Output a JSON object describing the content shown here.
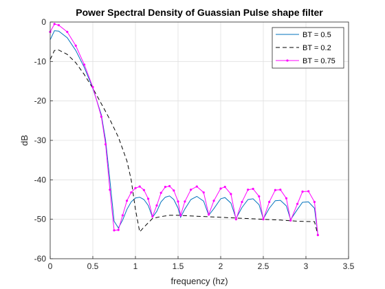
{
  "chart_data": {
    "type": "line",
    "title": "Power Spectral Density of Guassian Pulse shape filter",
    "xlabel": "frequency (hz)",
    "ylabel": "dB",
    "xlim": [
      0,
      3.5
    ],
    "ylim": [
      -60,
      0
    ],
    "xticks": [
      0,
      0.5,
      1,
      1.5,
      2,
      2.5,
      3,
      3.5
    ],
    "xtick_labels": [
      "0",
      "0.5",
      "1",
      "1.5",
      "2",
      "2.5",
      "3",
      "3.5"
    ],
    "yticks": [
      0,
      -10,
      -20,
      -30,
      -40,
      -50,
      -60
    ],
    "ytick_labels": [
      "0",
      "-10",
      "-20",
      "-30",
      "-40",
      "-50",
      "-60"
    ],
    "grid": true,
    "legend_position": "top-right",
    "series": [
      {
        "name": "BT = 0.5",
        "color": "#0072BD",
        "style": "solid",
        "marker": "none",
        "points": [
          [
            0,
            -4.5
          ],
          [
            0.05,
            -2.2
          ],
          [
            0.1,
            -2.3
          ],
          [
            0.2,
            -4.0
          ],
          [
            0.3,
            -7.2
          ],
          [
            0.4,
            -11.5
          ],
          [
            0.5,
            -16.8
          ],
          [
            0.6,
            -23.5
          ],
          [
            0.65,
            -30
          ],
          [
            0.7,
            -40
          ],
          [
            0.75,
            -50.5
          ],
          [
            0.8,
            -52.2
          ],
          [
            0.85,
            -50.2
          ],
          [
            0.9,
            -47.5
          ],
          [
            0.95,
            -45.6
          ],
          [
            1.0,
            -44.6
          ],
          [
            1.05,
            -44.4
          ],
          [
            1.1,
            -45.0
          ],
          [
            1.15,
            -46.5
          ],
          [
            1.2,
            -49.5
          ],
          [
            1.25,
            -48.0
          ],
          [
            1.3,
            -45.6
          ],
          [
            1.35,
            -44.4
          ],
          [
            1.4,
            -44.1
          ],
          [
            1.45,
            -45.0
          ],
          [
            1.5,
            -47.2
          ],
          [
            1.53,
            -49.5
          ],
          [
            1.58,
            -47.4
          ],
          [
            1.65,
            -45.0
          ],
          [
            1.72,
            -44.2
          ],
          [
            1.8,
            -45.4
          ],
          [
            1.86,
            -49.0
          ],
          [
            1.92,
            -47.3
          ],
          [
            2.0,
            -44.8
          ],
          [
            2.05,
            -44.5
          ],
          [
            2.12,
            -45.9
          ],
          [
            2.18,
            -49.8
          ],
          [
            2.25,
            -47.0
          ],
          [
            2.32,
            -45.0
          ],
          [
            2.38,
            -44.8
          ],
          [
            2.45,
            -46.3
          ],
          [
            2.5,
            -49.9
          ],
          [
            2.57,
            -47.2
          ],
          [
            2.64,
            -45.3
          ],
          [
            2.7,
            -45.2
          ],
          [
            2.77,
            -46.6
          ],
          [
            2.82,
            -50.1
          ],
          [
            2.9,
            -47.5
          ],
          [
            2.96,
            -45.7
          ],
          [
            3.03,
            -45.6
          ],
          [
            3.1,
            -47.2
          ],
          [
            3.14,
            -54.0
          ]
        ]
      },
      {
        "name": "BT = 0.2",
        "color": "#000000",
        "style": "dashed",
        "marker": "none",
        "points": [
          [
            0,
            -9.5
          ],
          [
            0.05,
            -7.2
          ],
          [
            0.1,
            -7.1
          ],
          [
            0.2,
            -8.2
          ],
          [
            0.3,
            -10.3
          ],
          [
            0.4,
            -13.3
          ],
          [
            0.5,
            -16.8
          ],
          [
            0.6,
            -20.7
          ],
          [
            0.7,
            -24.7
          ],
          [
            0.8,
            -29.2
          ],
          [
            0.9,
            -35.2
          ],
          [
            0.95,
            -40.0
          ],
          [
            1.0,
            -47.5
          ],
          [
            1.05,
            -53.2
          ],
          [
            1.1,
            -52.0
          ],
          [
            1.2,
            -49.8
          ],
          [
            1.3,
            -49.3
          ],
          [
            1.4,
            -49.0
          ],
          [
            1.5,
            -49.0
          ],
          [
            1.7,
            -49.2
          ],
          [
            1.9,
            -49.4
          ],
          [
            2.1,
            -49.6
          ],
          [
            2.3,
            -49.8
          ],
          [
            2.5,
            -50.0
          ],
          [
            2.7,
            -50.2
          ],
          [
            2.9,
            -50.5
          ],
          [
            3.1,
            -50.6
          ],
          [
            3.14,
            -54.0
          ]
        ]
      },
      {
        "name": "BT = 0.75",
        "color": "#FF00FF",
        "style": "solid",
        "marker": "dot",
        "points": [
          [
            0,
            -2.5
          ],
          [
            0.05,
            -0.5
          ],
          [
            0.1,
            -0.8
          ],
          [
            0.2,
            -2.5
          ],
          [
            0.3,
            -6.0
          ],
          [
            0.4,
            -10.8
          ],
          [
            0.5,
            -16.5
          ],
          [
            0.6,
            -24.0
          ],
          [
            0.65,
            -31
          ],
          [
            0.7,
            -42.5
          ],
          [
            0.75,
            -52.8
          ],
          [
            0.8,
            -52.7
          ],
          [
            0.85,
            -49.0
          ],
          [
            0.9,
            -45.3
          ],
          [
            0.95,
            -43.2
          ],
          [
            1.0,
            -42.1
          ],
          [
            1.05,
            -41.7
          ],
          [
            1.1,
            -42.6
          ],
          [
            1.15,
            -44.8
          ],
          [
            1.2,
            -49.3
          ],
          [
            1.25,
            -46.5
          ],
          [
            1.3,
            -43.3
          ],
          [
            1.35,
            -41.8
          ],
          [
            1.4,
            -41.6
          ],
          [
            1.45,
            -42.7
          ],
          [
            1.5,
            -45.5
          ],
          [
            1.53,
            -49.0
          ],
          [
            1.58,
            -45.5
          ],
          [
            1.65,
            -42.5
          ],
          [
            1.72,
            -41.7
          ],
          [
            1.8,
            -43.2
          ],
          [
            1.86,
            -48.8
          ],
          [
            1.92,
            -45.3
          ],
          [
            2.0,
            -42.2
          ],
          [
            2.05,
            -41.8
          ],
          [
            2.12,
            -43.6
          ],
          [
            2.18,
            -50.0
          ],
          [
            2.25,
            -45.6
          ],
          [
            2.32,
            -42.5
          ],
          [
            2.38,
            -42.3
          ],
          [
            2.45,
            -44.2
          ],
          [
            2.5,
            -50.0
          ],
          [
            2.57,
            -45.6
          ],
          [
            2.64,
            -42.6
          ],
          [
            2.7,
            -42.5
          ],
          [
            2.77,
            -44.7
          ],
          [
            2.82,
            -50.3
          ],
          [
            2.9,
            -46.1
          ],
          [
            2.96,
            -43.0
          ],
          [
            3.03,
            -42.9
          ],
          [
            3.1,
            -45.6
          ],
          [
            3.14,
            -54.0
          ]
        ]
      }
    ]
  }
}
